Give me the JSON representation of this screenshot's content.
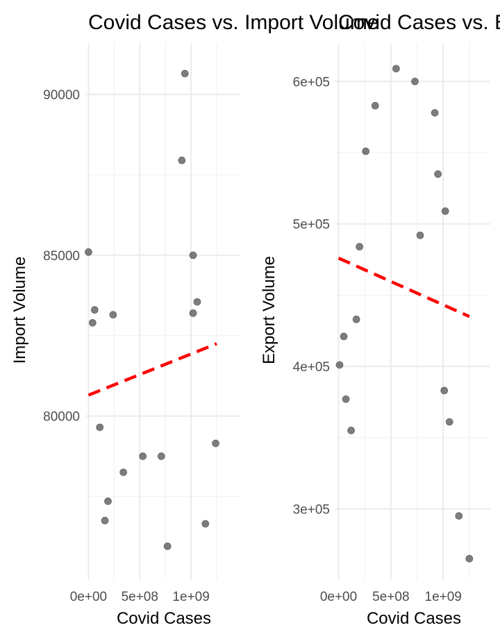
{
  "chart_data": [
    {
      "type": "scatter",
      "title": "Covid Cases vs. Import Volume",
      "xlabel": "Covid Cases",
      "ylabel": "Import Volume",
      "x_ticks": [
        {
          "value": 0,
          "label": "0e+00"
        },
        {
          "value": 500000000,
          "label": "5e+08"
        },
        {
          "value": 1000000000,
          "label": "1e+09"
        }
      ],
      "y_ticks": [
        {
          "value": 80000,
          "label": "80000"
        },
        {
          "value": 85000,
          "label": "85000"
        },
        {
          "value": 90000,
          "label": "90000"
        }
      ],
      "xlim": [
        -30000000,
        1480000000
      ],
      "ylim": [
        74900,
        91600
      ],
      "grid": true,
      "point_color": "#595959",
      "trend_color": "#ff0000",
      "points": [
        {
          "x": 0,
          "y": 85100
        },
        {
          "x": 40000000,
          "y": 82900
        },
        {
          "x": 60000000,
          "y": 83300
        },
        {
          "x": 110000000,
          "y": 79650
        },
        {
          "x": 160000000,
          "y": 76750
        },
        {
          "x": 190000000,
          "y": 77350
        },
        {
          "x": 240000000,
          "y": 83150
        },
        {
          "x": 340000000,
          "y": 78250
        },
        {
          "x": 530000000,
          "y": 78750
        },
        {
          "x": 710000000,
          "y": 78750
        },
        {
          "x": 770000000,
          "y": 75950
        },
        {
          "x": 910000000,
          "y": 87950
        },
        {
          "x": 940000000,
          "y": 90650
        },
        {
          "x": 1020000000,
          "y": 83200
        },
        {
          "x": 1020000000,
          "y": 85000
        },
        {
          "x": 1060000000,
          "y": 83550
        },
        {
          "x": 1140000000,
          "y": 76650
        },
        {
          "x": 1240000000,
          "y": 79150
        }
      ],
      "trend": [
        {
          "x": 0,
          "y": 80650
        },
        {
          "x": 1250000000,
          "y": 82250
        }
      ]
    },
    {
      "type": "scatter",
      "title": "Covid Cases vs. Export Volume",
      "xlabel": "Covid Cases",
      "ylabel": "Export Volume",
      "x_ticks": [
        {
          "value": 0,
          "label": "0e+00"
        },
        {
          "value": 500000000,
          "label": "5e+08"
        },
        {
          "value": 1000000000,
          "label": "1e+09"
        }
      ],
      "y_ticks": [
        {
          "value": 300000,
          "label": "3e+05"
        },
        {
          "value": 400000,
          "label": "4e+05"
        },
        {
          "value": 500000,
          "label": "5e+05"
        },
        {
          "value": 600000,
          "label": "6e+05"
        }
      ],
      "xlim": [
        -30000000,
        1450000000
      ],
      "ylim": [
        250000,
        627000
      ],
      "grid": true,
      "point_color": "#595959",
      "trend_color": "#ff0000",
      "points": [
        {
          "x": 10000000,
          "y": 401000
        },
        {
          "x": 50000000,
          "y": 421000
        },
        {
          "x": 70000000,
          "y": 377000
        },
        {
          "x": 120000000,
          "y": 355000
        },
        {
          "x": 170000000,
          "y": 433000
        },
        {
          "x": 200000000,
          "y": 484000
        },
        {
          "x": 260000000,
          "y": 551000
        },
        {
          "x": 350000000,
          "y": 583000
        },
        {
          "x": 550000000,
          "y": 609000
        },
        {
          "x": 730000000,
          "y": 600000
        },
        {
          "x": 780000000,
          "y": 492000
        },
        {
          "x": 920000000,
          "y": 578000
        },
        {
          "x": 950000000,
          "y": 535000
        },
        {
          "x": 1010000000,
          "y": 383000
        },
        {
          "x": 1020000000,
          "y": 509000
        },
        {
          "x": 1060000000,
          "y": 361000
        },
        {
          "x": 1150000000,
          "y": 295000
        },
        {
          "x": 1250000000,
          "y": 265000
        }
      ],
      "trend": [
        {
          "x": 0,
          "y": 476000
        },
        {
          "x": 1250000000,
          "y": 435000
        }
      ]
    }
  ]
}
